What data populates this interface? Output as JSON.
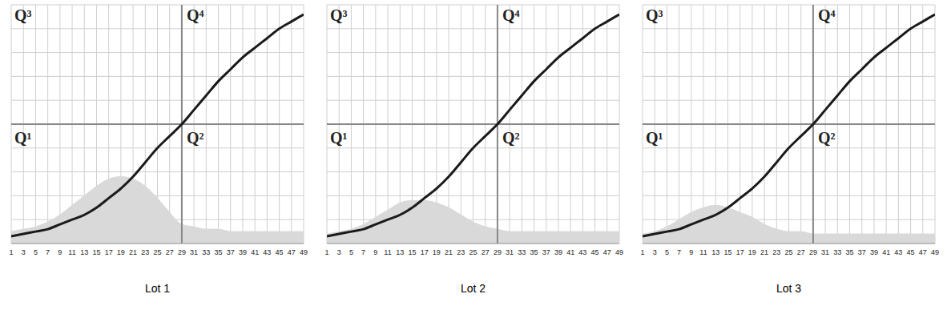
{
  "chart_data": [
    {
      "type": "line",
      "title": "Lot 1",
      "x": [
        1,
        3,
        5,
        7,
        9,
        11,
        13,
        15,
        17,
        19,
        21,
        23,
        25,
        27,
        29,
        31,
        33,
        35,
        37,
        39,
        41,
        43,
        45,
        47,
        49
      ],
      "xlim": [
        1,
        49
      ],
      "xticks": [
        1,
        3,
        5,
        7,
        9,
        11,
        13,
        15,
        17,
        19,
        21,
        23,
        25,
        27,
        29,
        31,
        33,
        35,
        37,
        39,
        41,
        43,
        45,
        47,
        49
      ],
      "ylim": [
        0,
        100
      ],
      "yticks": [
        0,
        10,
        20,
        30,
        40,
        50,
        60,
        70,
        80,
        90,
        100
      ],
      "grid": true,
      "tick_labels": "x",
      "quadrant_labels": [
        "Q¹",
        "Q²",
        "Q³",
        "Q⁴"
      ],
      "reference_x": 29,
      "reference_y": 50,
      "series": [
        {
          "type": "area",
          "color": "#d9d9d9",
          "values": [
            5,
            6,
            7,
            9,
            12,
            16,
            20,
            24,
            27,
            28,
            27,
            24,
            19,
            13,
            8,
            7,
            6,
            6,
            5,
            5,
            5,
            5,
            5,
            5,
            5
          ]
        },
        {
          "type": "line",
          "color": "#1a1a1a",
          "values": [
            3,
            4,
            5,
            6,
            8,
            10,
            12,
            15,
            19,
            23,
            28,
            34,
            40,
            45,
            50,
            56,
            62,
            68,
            73,
            78,
            82,
            86,
            90,
            93,
            96
          ]
        }
      ]
    },
    {
      "type": "line",
      "title": "Lot 2",
      "x": [
        1,
        3,
        5,
        7,
        9,
        11,
        13,
        15,
        17,
        19,
        21,
        23,
        25,
        27,
        29,
        31,
        33,
        35,
        37,
        39,
        41,
        43,
        45,
        47,
        49
      ],
      "xlim": [
        1,
        49
      ],
      "xticks": [
        1,
        3,
        5,
        7,
        9,
        11,
        13,
        15,
        17,
        19,
        21,
        23,
        25,
        27,
        29,
        31,
        33,
        35,
        37,
        39,
        41,
        43,
        45,
        47,
        49
      ],
      "ylim": [
        0,
        100
      ],
      "yticks": [
        0,
        10,
        20,
        30,
        40,
        50,
        60,
        70,
        80,
        90,
        100
      ],
      "grid": true,
      "tick_labels": "x",
      "quadrant_labels": [
        "Q¹",
        "Q²",
        "Q³",
        "Q⁴"
      ],
      "reference_x": 29,
      "reference_y": 50,
      "series": [
        {
          "type": "area",
          "color": "#d9d9d9",
          "values": [
            4,
            5,
            6,
            8,
            11,
            14,
            17,
            18,
            18,
            17,
            15,
            12,
            9,
            7,
            6,
            5,
            5,
            5,
            5,
            5,
            5,
            5,
            5,
            5,
            5
          ]
        },
        {
          "type": "line",
          "color": "#1a1a1a",
          "values": [
            3,
            4,
            5,
            6,
            8,
            10,
            12,
            15,
            19,
            23,
            28,
            34,
            40,
            45,
            50,
            56,
            62,
            68,
            73,
            78,
            82,
            86,
            90,
            93,
            96
          ]
        }
      ]
    },
    {
      "type": "line",
      "title": "Lot 3",
      "x": [
        1,
        3,
        5,
        7,
        9,
        11,
        13,
        15,
        17,
        19,
        21,
        23,
        25,
        27,
        29,
        31,
        33,
        35,
        37,
        39,
        41,
        43,
        45,
        47,
        49
      ],
      "xlim": [
        1,
        49
      ],
      "xticks": [
        1,
        3,
        5,
        7,
        9,
        11,
        13,
        15,
        17,
        19,
        21,
        23,
        25,
        27,
        29,
        31,
        33,
        35,
        37,
        39,
        41,
        43,
        45,
        47,
        49
      ],
      "ylim": [
        0,
        100
      ],
      "yticks": [
        0,
        10,
        20,
        30,
        40,
        50,
        60,
        70,
        80,
        90,
        100
      ],
      "grid": true,
      "tick_labels": "x",
      "quadrant_labels": [
        "Q¹",
        "Q²",
        "Q³",
        "Q⁴"
      ],
      "reference_x": 29,
      "reference_y": 50,
      "series": [
        {
          "type": "area",
          "color": "#d9d9d9",
          "values": [
            4,
            5,
            7,
            10,
            13,
            15,
            16,
            15,
            13,
            11,
            8,
            6,
            5,
            5,
            4,
            4,
            4,
            4,
            4,
            4,
            4,
            4,
            4,
            4,
            4
          ]
        },
        {
          "type": "line",
          "color": "#1a1a1a",
          "values": [
            3,
            4,
            5,
            6,
            8,
            10,
            12,
            15,
            19,
            23,
            28,
            34,
            40,
            45,
            50,
            56,
            62,
            68,
            73,
            78,
            82,
            86,
            90,
            93,
            96
          ]
        }
      ]
    }
  ]
}
